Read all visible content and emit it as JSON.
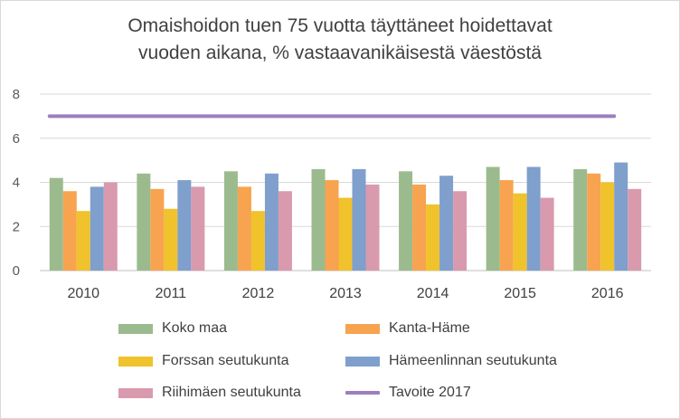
{
  "chart_data": {
    "type": "bar",
    "title_lines": [
      "Omaishoidon tuen 75 vuotta täyttäneet hoidettavat",
      "vuoden aikana, % vastaavanikäisestä väestöstä"
    ],
    "categories": [
      "2010",
      "2011",
      "2012",
      "2013",
      "2014",
      "2015",
      "2016"
    ],
    "ylim": [
      0,
      8
    ],
    "yticks": [
      "0",
      "2",
      "4",
      "6",
      "8"
    ],
    "grid": true,
    "legend_position": "bottom",
    "series": [
      {
        "name": "Koko maa",
        "color": "#9bbb8e",
        "values": [
          4.2,
          4.4,
          4.5,
          4.6,
          4.5,
          4.7,
          4.6
        ]
      },
      {
        "name": "Kanta-Häme",
        "color": "#f7a34f",
        "values": [
          3.6,
          3.7,
          3.8,
          4.1,
          3.9,
          4.1,
          4.4
        ]
      },
      {
        "name": "Forssan seutukunta",
        "color": "#f0c22c",
        "values": [
          2.7,
          2.8,
          2.7,
          3.3,
          3.0,
          3.5,
          4.0
        ]
      },
      {
        "name": "Hämeenlinnan seutukunta",
        "color": "#7f9fcc",
        "values": [
          3.8,
          4.1,
          4.4,
          4.6,
          4.3,
          4.7,
          4.9
        ]
      },
      {
        "name": "Riihimäen seutukunta",
        "color": "#d99aae",
        "values": [
          4.0,
          3.8,
          3.6,
          3.9,
          3.6,
          3.3,
          3.7
        ]
      }
    ],
    "target_line": {
      "name": "Tavoite 2017",
      "color": "#9d7fbf",
      "value": 7.0
    }
  }
}
